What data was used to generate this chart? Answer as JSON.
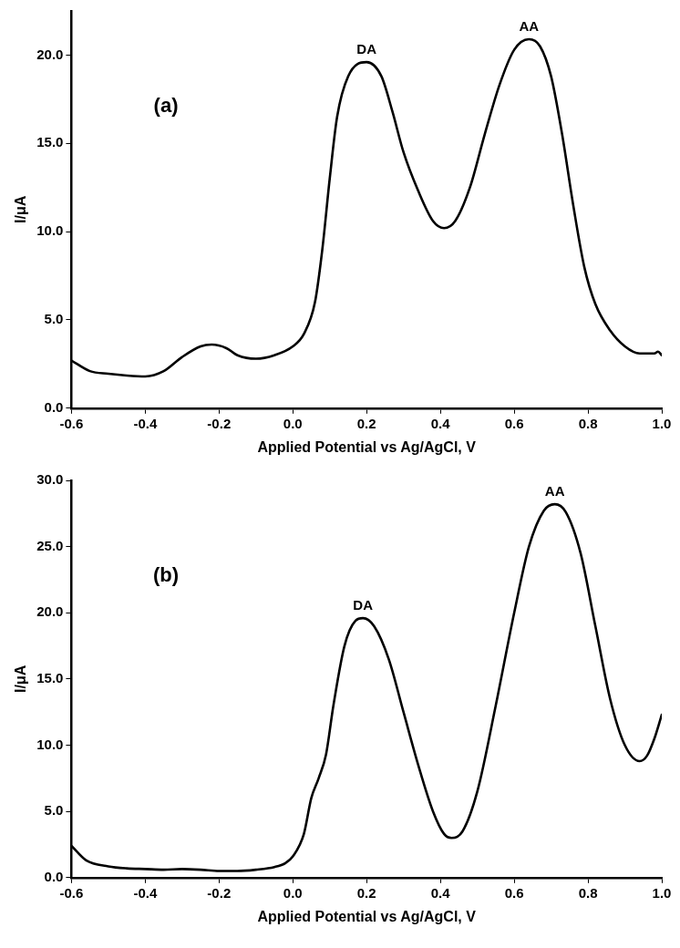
{
  "chart_data": [
    {
      "type": "line",
      "xlabel": "Applied Potential vs Ag/AgCl, V",
      "ylabel": "I/μA",
      "grid": false,
      "legend": false,
      "marker": "none",
      "line_style": "solid",
      "xlim": [
        -0.6,
        1.0
      ],
      "xticks": [
        {
          "value": -0.6,
          "label": "-0.6"
        },
        {
          "value": -0.4,
          "label": "-0.4"
        },
        {
          "value": -0.2,
          "label": "-0.2"
        },
        {
          "value": 0,
          "label": "0.0"
        },
        {
          "value": 0.2,
          "label": "0.2"
        },
        {
          "value": 0.4,
          "label": "0.4"
        },
        {
          "value": 0.6,
          "label": "0.6"
        },
        {
          "value": 0.8,
          "label": "0.8"
        },
        {
          "value": 1,
          "label": "1.0"
        }
      ],
      "ylim": [
        0,
        22.5
      ],
      "yticks": [
        {
          "value": 0,
          "label": "0.0"
        },
        {
          "value": 5,
          "label": "5.0"
        },
        {
          "value": 10,
          "label": "10.0"
        },
        {
          "value": 15,
          "label": "15.0"
        },
        {
          "value": 20,
          "label": "20.0"
        }
      ],
      "annotations": [
        "(a)",
        {
          "text": "DA",
          "x": 0.2,
          "y": 19.6
        },
        {
          "text": "AA",
          "x": 0.64,
          "y": 20.9
        }
      ],
      "series": [
        {
          "color": "#000000",
          "x": [
            -0.6,
            -0.55,
            -0.5,
            -0.45,
            -0.4,
            -0.35,
            -0.3,
            -0.25,
            -0.22,
            -0.18,
            -0.15,
            -0.1,
            -0.05,
            0.0,
            0.03,
            0.06,
            0.08,
            0.1,
            0.12,
            0.15,
            0.2,
            0.24,
            0.27,
            0.3,
            0.34,
            0.38,
            0.41,
            0.44,
            0.48,
            0.52,
            0.56,
            0.6,
            0.64,
            0.67,
            0.7,
            0.73,
            0.76,
            0.79,
            0.82,
            0.86,
            0.9,
            0.94,
            0.98,
            0.99,
            1.0
          ],
          "values": [
            2.7,
            2.1,
            1.95,
            1.85,
            1.8,
            2.1,
            2.9,
            3.5,
            3.6,
            3.4,
            3.0,
            2.8,
            3.0,
            3.5,
            4.2,
            6.0,
            9,
            13,
            16.5,
            18.8,
            19.6,
            18.8,
            16.8,
            14.5,
            12.3,
            10.6,
            10.2,
            10.6,
            12.5,
            15.5,
            18.3,
            20.3,
            20.9,
            20.5,
            18.8,
            15.5,
            11.5,
            8,
            5.9,
            4.4,
            3.5,
            3.1,
            3.1,
            3.2,
            3.0
          ]
        }
      ]
    },
    {
      "type": "line",
      "xlabel": "Applied Potential vs Ag/AgCl, V",
      "ylabel": "I/μA",
      "grid": false,
      "legend": false,
      "marker": "none",
      "line_style": "solid",
      "xlim": [
        -0.6,
        1.0
      ],
      "xticks": [
        {
          "value": -0.6,
          "label": "-0.6"
        },
        {
          "value": -0.4,
          "label": "-0.4"
        },
        {
          "value": -0.2,
          "label": "-0.2"
        },
        {
          "value": 0,
          "label": "0.0"
        },
        {
          "value": 0.2,
          "label": "0.2"
        },
        {
          "value": 0.4,
          "label": "0.4"
        },
        {
          "value": 0.6,
          "label": "0.6"
        },
        {
          "value": 0.8,
          "label": "0.8"
        },
        {
          "value": 1,
          "label": "1.0"
        }
      ],
      "ylim": [
        0,
        30
      ],
      "yticks": [
        {
          "value": 0,
          "label": "0.0"
        },
        {
          "value": 5,
          "label": "5.0"
        },
        {
          "value": 10,
          "label": "10.0"
        },
        {
          "value": 15,
          "label": "15.0"
        },
        {
          "value": 20,
          "label": "20.0"
        },
        {
          "value": 25,
          "label": "25.0"
        },
        {
          "value": 30,
          "label": "30.0"
        }
      ],
      "annotations": [
        "(b)",
        {
          "text": "DA",
          "x": 0.19,
          "y": 19.6
        },
        {
          "text": "AA",
          "x": 0.71,
          "y": 28.2
        }
      ],
      "series": [
        {
          "color": "#000000",
          "x": [
            -0.6,
            -0.56,
            -0.5,
            -0.45,
            -0.4,
            -0.35,
            -0.3,
            -0.25,
            -0.2,
            -0.15,
            -0.1,
            -0.05,
            -0.02,
            0.0,
            0.03,
            0.05,
            0.07,
            0.09,
            0.11,
            0.14,
            0.17,
            0.19,
            0.22,
            0.26,
            0.3,
            0.34,
            0.38,
            0.41,
            0.43,
            0.46,
            0.5,
            0.55,
            0.6,
            0.64,
            0.68,
            0.71,
            0.74,
            0.78,
            0.82,
            0.86,
            0.9,
            0.94,
            0.96,
            0.98,
            1.0
          ],
          "values": [
            2.4,
            1.3,
            0.85,
            0.7,
            0.65,
            0.6,
            0.65,
            0.6,
            0.5,
            0.5,
            0.6,
            0.8,
            1.1,
            1.6,
            3.3,
            6,
            7.5,
            9.3,
            13,
            17.5,
            19.4,
            19.6,
            19,
            16.5,
            12.5,
            8.5,
            5,
            3.3,
            3.0,
            3.5,
            6.5,
            13,
            20,
            25,
            27.7,
            28.2,
            27.6,
            24.5,
            19,
            13.5,
            10,
            8.8,
            9.2,
            10.5,
            12.3
          ]
        }
      ]
    }
  ]
}
